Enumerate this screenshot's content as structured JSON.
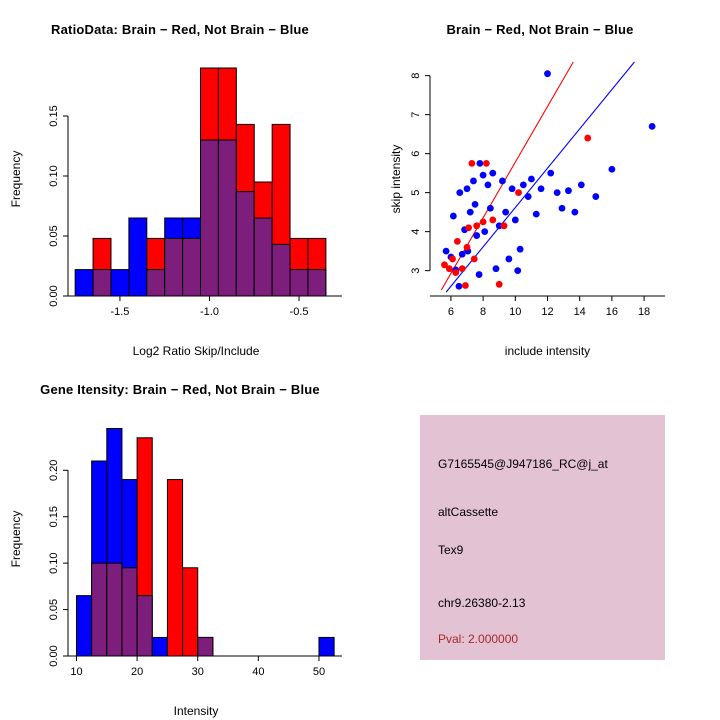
{
  "colors": {
    "red": "#FF0000",
    "blue": "#0000FF",
    "overlap": "#7D1E7D",
    "box_bg": "#E3C2D4",
    "pval_text": "#A52A2A",
    "axis": "#000000",
    "background": "#FFFFFF"
  },
  "chart_data": [
    {
      "id": "ratio_histogram",
      "type": "bar",
      "subtype": "overlaid_histogram",
      "title": "RatioData: Brain − Red, Not Brain − Blue",
      "xlabel": "Log2 Ratio Skip/Include",
      "ylabel": "Frequency",
      "xlim": [
        -1.79,
        -0.26
      ],
      "ylim": [
        0,
        0.195
      ],
      "xticks": [
        -1.5,
        -1.0,
        -0.5
      ],
      "xtick_labels": [
        "-1.5",
        "-1.0",
        "-0.5"
      ],
      "yticks": [
        0,
        0.05,
        0.1,
        0.15
      ],
      "ytick_labels": [
        "0.00",
        "0.05",
        "0.10",
        "0.15"
      ],
      "bin_start": -1.75,
      "bin_width": 0.1,
      "series": [
        {
          "name": "Not Brain",
          "color": "blue",
          "values": [
            0.022,
            0.022,
            0.022,
            0.065,
            0.022,
            0.065,
            0.065,
            0.13,
            0.13,
            0.087,
            0.065,
            0.043,
            0.022,
            0.022
          ]
        },
        {
          "name": "Brain",
          "color": "red",
          "values": [
            0,
            0.048,
            0,
            0,
            0.048,
            0.048,
            0.048,
            0.19,
            0.19,
            0.143,
            0.095,
            0.143,
            0.048,
            0.048
          ]
        }
      ]
    },
    {
      "id": "intensity_scatter",
      "type": "scatter",
      "title": "Brain − Red, Not Brain − Blue",
      "xlabel": "include intensity",
      "ylabel": "skip intensity",
      "xlim": [
        4.7,
        19.3
      ],
      "ylim": [
        2.35,
        8.35
      ],
      "xticks": [
        6,
        8,
        10,
        12,
        14,
        16,
        18
      ],
      "xtick_labels": [
        "6",
        "8",
        "10",
        "12",
        "14",
        "16",
        "18"
      ],
      "yticks": [
        3,
        4,
        5,
        6,
        7,
        8
      ],
      "ytick_labels": [
        "3",
        "4",
        "5",
        "6",
        "7",
        "8"
      ],
      "series": [
        {
          "name": "Not Brain",
          "color": "blue",
          "points": [
            [
              5.7,
              3.5
            ],
            [
              6.0,
              3.35
            ],
            [
              6.15,
              4.4
            ],
            [
              6.3,
              3.02
            ],
            [
              6.5,
              2.6
            ],
            [
              6.55,
              5.0
            ],
            [
              6.7,
              3.42
            ],
            [
              6.85,
              4.05
            ],
            [
              7.0,
              5.1
            ],
            [
              7.05,
              3.5
            ],
            [
              7.2,
              4.5
            ],
            [
              7.4,
              5.3
            ],
            [
              7.5,
              4.7
            ],
            [
              7.6,
              3.9
            ],
            [
              7.75,
              2.9
            ],
            [
              7.8,
              5.75
            ],
            [
              8.0,
              5.45
            ],
            [
              8.1,
              4.0
            ],
            [
              8.3,
              5.2
            ],
            [
              8.45,
              4.6
            ],
            [
              8.6,
              5.5
            ],
            [
              8.8,
              3.05
            ],
            [
              9.0,
              4.15
            ],
            [
              9.2,
              5.3
            ],
            [
              9.4,
              4.5
            ],
            [
              9.6,
              3.3
            ],
            [
              9.8,
              5.1
            ],
            [
              10.0,
              4.3
            ],
            [
              10.15,
              3.0
            ],
            [
              10.3,
              3.55
            ],
            [
              10.5,
              5.2
            ],
            [
              10.8,
              4.9
            ],
            [
              11.0,
              5.35
            ],
            [
              11.3,
              4.45
            ],
            [
              11.6,
              5.1
            ],
            [
              12.0,
              8.05
            ],
            [
              12.2,
              5.5
            ],
            [
              12.6,
              5.0
            ],
            [
              12.9,
              4.6
            ],
            [
              13.3,
              5.05
            ],
            [
              13.7,
              4.5
            ],
            [
              14.1,
              5.2
            ],
            [
              15.0,
              4.9
            ],
            [
              16.0,
              5.6
            ],
            [
              18.5,
              6.7
            ]
          ]
        },
        {
          "name": "Brain",
          "color": "red",
          "points": [
            [
              5.6,
              3.15
            ],
            [
              5.9,
              3.05
            ],
            [
              6.1,
              3.3
            ],
            [
              6.3,
              2.95
            ],
            [
              6.4,
              3.75
            ],
            [
              6.7,
              3.05
            ],
            [
              6.9,
              2.62
            ],
            [
              7.0,
              3.6
            ],
            [
              7.1,
              4.1
            ],
            [
              7.3,
              5.75
            ],
            [
              7.45,
              3.3
            ],
            [
              7.6,
              4.15
            ],
            [
              8.0,
              4.25
            ],
            [
              8.2,
              5.75
            ],
            [
              8.6,
              4.3
            ],
            [
              9.0,
              2.65
            ],
            [
              9.3,
              4.15
            ],
            [
              10.2,
              5.0
            ],
            [
              14.5,
              6.4
            ]
          ]
        }
      ],
      "lines": [
        {
          "name": "brain_fit",
          "color": "red",
          "points": [
            [
              5.4,
              2.5
            ],
            [
              13.6,
              8.35
            ]
          ]
        },
        {
          "name": "notbrain_fit",
          "color": "blue",
          "points": [
            [
              5.7,
              2.45
            ],
            [
              17.4,
              8.35
            ]
          ]
        }
      ]
    },
    {
      "id": "gene_intensity_histogram",
      "type": "bar",
      "subtype": "overlaid_histogram",
      "title": "Gene Itensity: Brain − Red, Not Brain − Blue",
      "xlabel": "Intensity",
      "ylabel": "Frequency",
      "xlim": [
        8.6,
        53.8
      ],
      "ylim": [
        0,
        0.252
      ],
      "xticks": [
        10,
        20,
        30,
        40,
        50
      ],
      "xtick_labels": [
        "10",
        "20",
        "30",
        "40",
        "50"
      ],
      "yticks": [
        0,
        0.05,
        0.1,
        0.15,
        0.2
      ],
      "ytick_labels": [
        "0.00",
        "0.05",
        "0.10",
        "0.15",
        "0.20"
      ],
      "bin_start": 10,
      "bin_width": 2.5,
      "series": [
        {
          "name": "Not Brain",
          "color": "blue",
          "values": [
            0.065,
            0.21,
            0.245,
            0.19,
            0.065,
            0.02,
            0,
            0,
            0.02,
            0,
            0,
            0,
            0,
            0,
            0,
            0,
            0.02
          ]
        },
        {
          "name": "Brain",
          "color": "red",
          "values": [
            0,
            0.1,
            0.1,
            0.095,
            0.235,
            0,
            0.19,
            0.095,
            0.02,
            0,
            0,
            0,
            0,
            0,
            0,
            0,
            0
          ]
        }
      ]
    }
  ],
  "info_panel": {
    "lines": [
      "G7165545@J947186_RC@j_at",
      "altCassette",
      "Tex9",
      "chr9.26380-2.13"
    ],
    "pval": "Pval: 2.000000"
  }
}
